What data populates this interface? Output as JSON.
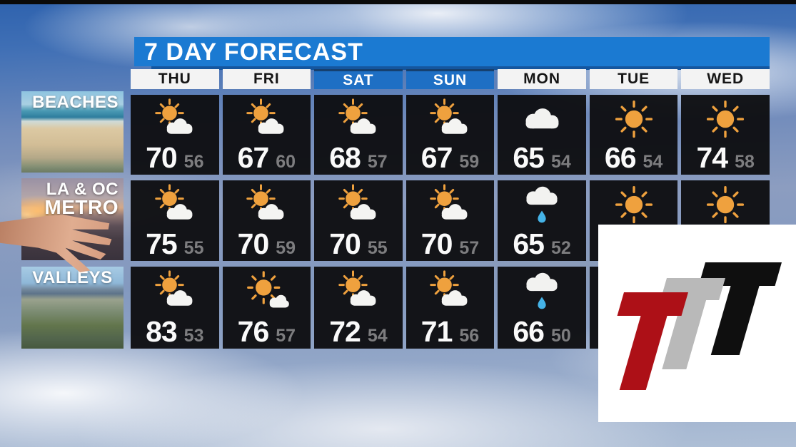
{
  "banner": {
    "title": "7 DAY FORECAST"
  },
  "chart_data": {
    "type": "table",
    "title": "7 DAY FORECAST",
    "columns": [
      {
        "label": "THU",
        "weekend": false
      },
      {
        "label": "FRI",
        "weekend": false
      },
      {
        "label": "SAT",
        "weekend": true
      },
      {
        "label": "SUN",
        "weekend": true
      },
      {
        "label": "MON",
        "weekend": false
      },
      {
        "label": "TUE",
        "weekend": false
      },
      {
        "label": "WED",
        "weekend": false
      }
    ],
    "rows": [
      {
        "id": "beaches",
        "region": "BEACHES",
        "region_lines": [
          "BEACHES"
        ],
        "cells": [
          {
            "condition": "partly-cloudy",
            "high": 70,
            "low": 56
          },
          {
            "condition": "partly-cloudy",
            "high": 67,
            "low": 60
          },
          {
            "condition": "partly-cloudy",
            "high": 68,
            "low": 57
          },
          {
            "condition": "partly-cloudy",
            "high": 67,
            "low": 59
          },
          {
            "condition": "cloudy",
            "high": 65,
            "low": 54
          },
          {
            "condition": "sunny",
            "high": 66,
            "low": 54
          },
          {
            "condition": "sunny",
            "high": 74,
            "low": 58
          }
        ]
      },
      {
        "id": "la-oc-metro",
        "region": "LA & OC METRO",
        "region_lines": [
          "LA & OC",
          "METRO"
        ],
        "cells": [
          {
            "condition": "partly-cloudy",
            "high": 75,
            "low": 55
          },
          {
            "condition": "partly-cloudy",
            "high": 70,
            "low": 59
          },
          {
            "condition": "partly-cloudy",
            "high": 70,
            "low": 55
          },
          {
            "condition": "partly-cloudy",
            "high": 70,
            "low": 57
          },
          {
            "condition": "rain",
            "high": 65,
            "low": 52
          },
          {
            "condition": "sunny",
            "high": null,
            "low": null
          },
          {
            "condition": "sunny",
            "high": null,
            "low": null
          }
        ]
      },
      {
        "id": "valleys",
        "region": "VALLEYS",
        "region_lines": [
          "VALLEYS"
        ],
        "cells": [
          {
            "condition": "partly-cloudy",
            "high": 83,
            "low": 53
          },
          {
            "condition": "mostly-sunny",
            "high": 76,
            "low": 57
          },
          {
            "condition": "partly-cloudy",
            "high": 72,
            "low": 54
          },
          {
            "condition": "partly-cloudy",
            "high": 71,
            "low": 56
          },
          {
            "condition": "rain",
            "high": 66,
            "low": 50
          },
          {
            "condition": null,
            "high": null,
            "low": null
          },
          {
            "condition": null,
            "high": null,
            "low": null
          }
        ]
      }
    ],
    "layout_hints": {
      "weekend_highlight": "blue header",
      "note_hidden_cells": "TUE/WED temps for LA & OC METRO and VALLEYS are covered by the station logo overlay"
    }
  },
  "colors": {
    "banner_blue": "#1b7ad2",
    "weekend_blue": "#1e6fc4",
    "cell_background": "#0d0d0f",
    "high_temp": "#fafafa",
    "low_temp": "#7d7d7f",
    "sun_orange": "#efa13e",
    "rain_drop": "#45b3e7"
  },
  "logo": {
    "name": "ttt-station-logo",
    "colors": {
      "red": "#ad1017",
      "gray": "#b9b9b9",
      "black": "#0f0f0f"
    }
  }
}
